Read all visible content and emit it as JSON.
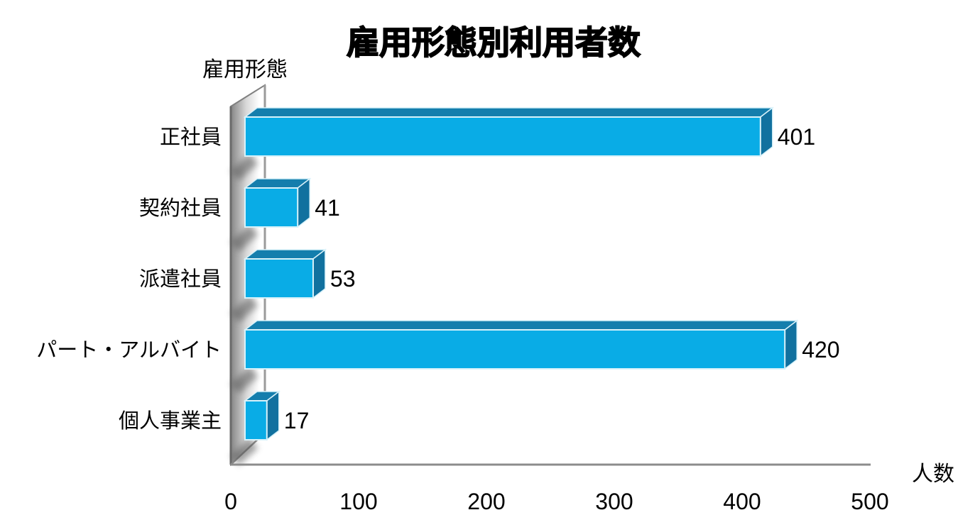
{
  "title": "雇用形態別利用者数",
  "axes": {
    "y_axis_title": "雇用形態",
    "x_axis_title": "人数"
  },
  "chart_data": {
    "type": "bar",
    "orientation": "horizontal",
    "style": "3d-box-bars-with-back-wall",
    "title": "雇用形態別利用者数",
    "xlabel": "人数",
    "ylabel": "雇用形態",
    "categories": [
      "正社員",
      "契約社員",
      "派遣社員",
      "パート・アルバイト",
      "個人事業主"
    ],
    "values": [
      401,
      41,
      53,
      420,
      17
    ],
    "data_labels": [
      "401",
      "41",
      "53",
      "420",
      "17"
    ],
    "xticks": [
      "0",
      "100",
      "200",
      "300",
      "400",
      "500"
    ],
    "xtick_values": [
      0,
      100,
      200,
      300,
      400,
      500
    ],
    "xlim": [
      0,
      500
    ],
    "grid": "off",
    "legend": "none",
    "colors": {
      "bar_front": "#09ace6",
      "bar_top": "#147ead",
      "bar_side": "#11719f",
      "edge_highlight": "#d8f2fa",
      "wall_dark": "#8a8a8a",
      "wall_light": "#ffffff",
      "wall_edge": "#808080",
      "wall_back_edge": "#6b6b6b",
      "axis_line": "#8c8c8c",
      "shadow": "#555555",
      "text": "#000000",
      "background": "#ffffff"
    }
  }
}
